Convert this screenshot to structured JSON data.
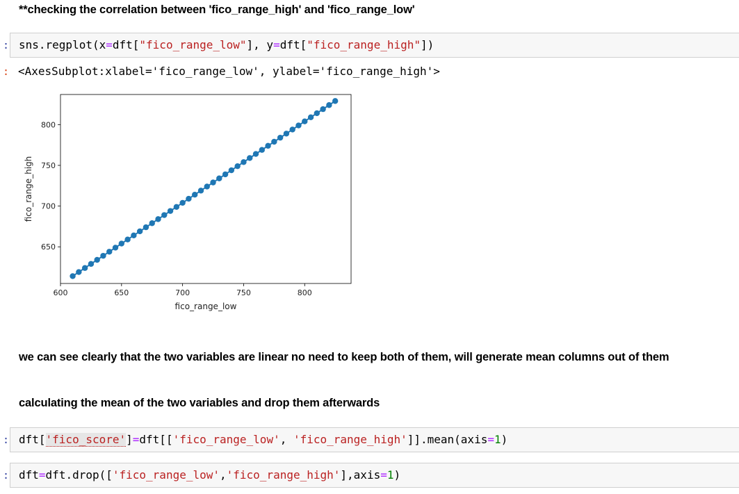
{
  "markdown": {
    "heading": "**checking the correlation between 'fico_range_high' and 'fico_range_low'",
    "observation": "we can see clearly that the two variables are linear no need to keep both of them, will generate mean columns out of them",
    "mean_note": "calculating the mean of the two variables and drop them afterwards"
  },
  "cells": {
    "prompt": ":",
    "regplot": {
      "t1": "sns.regplot(x",
      "t2": "=",
      "t3": "dft[",
      "t4": "\"fico_range_low\"",
      "t5": "], y",
      "t6": "=",
      "t7": "dft[",
      "t8": "\"fico_range_high\"",
      "t9": "])"
    },
    "output": "<AxesSubplot:xlabel='fico_range_low', ylabel='fico_range_high'>",
    "mean": {
      "t1": "dft[",
      "t2": "'fico_score'",
      "t3": "]",
      "t4": "=",
      "t5": "dft[[",
      "t6": "'fico_range_low'",
      "t7": ", ",
      "t8": "'fico_range_high'",
      "t9": "]].mean(axis",
      "t10": "=",
      "t11": "1",
      "t12": ")"
    },
    "drop": {
      "t1": "dft",
      "t2": "=",
      "t3": "dft.drop([",
      "t4": "'fico_range_low'",
      "t5": ",",
      "t6": "'fico_range_high'",
      "t7": "],axis",
      "t8": "=",
      "t9": "1",
      "t10": ")"
    }
  },
  "colors": {
    "marker": "#1f77b4",
    "line": "#1f77b4",
    "prompt": "#303f9f",
    "out_prompt": "#d84315",
    "string": "#ba2121",
    "number": "#008000",
    "operator": "#aa22ff"
  },
  "chart_data": {
    "type": "scatter",
    "title": "",
    "xlabel": "fico_range_low",
    "ylabel": "fico_range_high",
    "xlim": [
      600,
      838
    ],
    "ylim": [
      605,
      837
    ],
    "xticks": [
      600,
      650,
      700,
      750,
      800
    ],
    "yticks": [
      650,
      700,
      750,
      800
    ],
    "x_start": 610,
    "x_end": 825,
    "x_step": 5,
    "y_offset": 4,
    "regression_line": true,
    "grid": false
  }
}
